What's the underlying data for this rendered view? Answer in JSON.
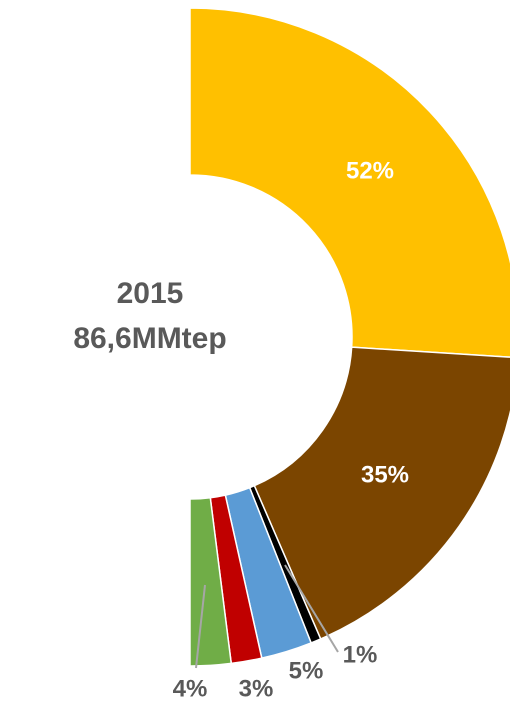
{
  "chart_data": {
    "type": "half-donut",
    "center_text": [
      "2015",
      "86,6MMtep"
    ],
    "values": [
      52,
      35,
      1,
      5,
      3,
      4
    ],
    "value_labels": [
      "52%",
      "35%",
      "1%",
      "5%",
      "3%",
      "4%"
    ],
    "colors": [
      "#FFC000",
      "#7B4500",
      "#000000",
      "#5B9BD5",
      "#C00000",
      "#70AD47"
    ]
  }
}
